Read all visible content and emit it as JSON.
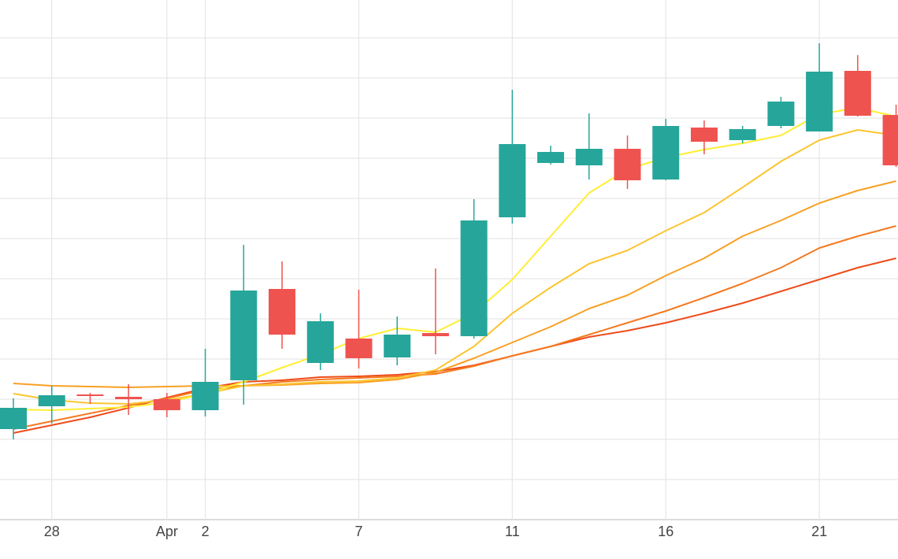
{
  "chart_data": {
    "type": "candlestick",
    "categories": [
      null,
      "28",
      null,
      null,
      "Apr",
      "2",
      null,
      null,
      null,
      "7",
      null,
      null,
      null,
      "11",
      null,
      null,
      null,
      "16",
      null,
      null,
      null,
      "21",
      null,
      null
    ],
    "open": [
      115,
      144,
      159,
      156,
      153,
      139,
      177,
      293,
      199,
      230,
      206,
      237,
      233,
      384,
      453,
      450,
      471,
      432,
      498,
      482,
      500,
      493,
      570,
      514
    ],
    "high": [
      154,
      170,
      161,
      172,
      161,
      217,
      349,
      328,
      262,
      292,
      258,
      319,
      407,
      546,
      475,
      516,
      488,
      509,
      507,
      500,
      537,
      605,
      590,
      527
    ],
    "low": [
      102,
      122,
      147,
      133,
      130,
      131,
      146,
      217,
      190,
      192,
      196,
      210,
      230,
      376,
      451,
      432,
      420,
      431,
      464,
      478,
      497,
      493,
      512,
      448
    ],
    "close": [
      142,
      158,
      157,
      153,
      139,
      175,
      291,
      235,
      252,
      205,
      235,
      233,
      380,
      477,
      467,
      471,
      431,
      500,
      480,
      496,
      531,
      569,
      513,
      450
    ],
    "up_color": "#26a69a",
    "down_color": "#ef5350",
    "overlays": [
      {
        "type": "line",
        "color": "#ffee33",
        "values": [
          140,
          139,
          141,
          143,
          149,
          160,
          175,
          193,
          210,
          230,
          243,
          238,
          262,
          305,
          360,
          415,
          445,
          460,
          470,
          478,
          488,
          515,
          523,
          512
        ]
      },
      {
        "type": "line",
        "color": "#fbc531",
        "values": [
          160,
          152,
          148,
          147,
          152,
          160,
          170,
          172,
          175,
          176,
          180,
          190,
          220,
          262,
          295,
          325,
          342,
          367,
          390,
          422,
          455,
          482,
          495,
          488
        ]
      },
      {
        "type": "line",
        "color": "#f8a023",
        "values": [
          173,
          170,
          169,
          168,
          169,
          170,
          170,
          171,
          173,
          174,
          178,
          187,
          205,
          225,
          245,
          268,
          285,
          310,
          332,
          360,
          380,
          402,
          418,
          430
        ]
      },
      {
        "type": "line",
        "color": "#f47a20",
        "values": [
          115,
          125,
          135,
          145,
          154,
          165,
          170,
          175,
          178,
          180,
          182,
          185,
          195,
          208,
          220,
          235,
          250,
          265,
          282,
          300,
          320,
          345,
          360,
          373
        ]
      },
      {
        "type": "line",
        "color": "#ee4b1a",
        "values": [
          110,
          120,
          130,
          142,
          155,
          167,
          175,
          177,
          181,
          182,
          184,
          188,
          196,
          208,
          220,
          232,
          240,
          250,
          262,
          275,
          290,
          305,
          320,
          332
        ]
      }
    ],
    "ylim": [
      0,
      660
    ],
    "yticks": [
      0,
      51,
      102,
      153,
      204,
      255,
      306,
      357,
      408,
      459,
      510,
      561,
      612
    ],
    "grid": true
  }
}
